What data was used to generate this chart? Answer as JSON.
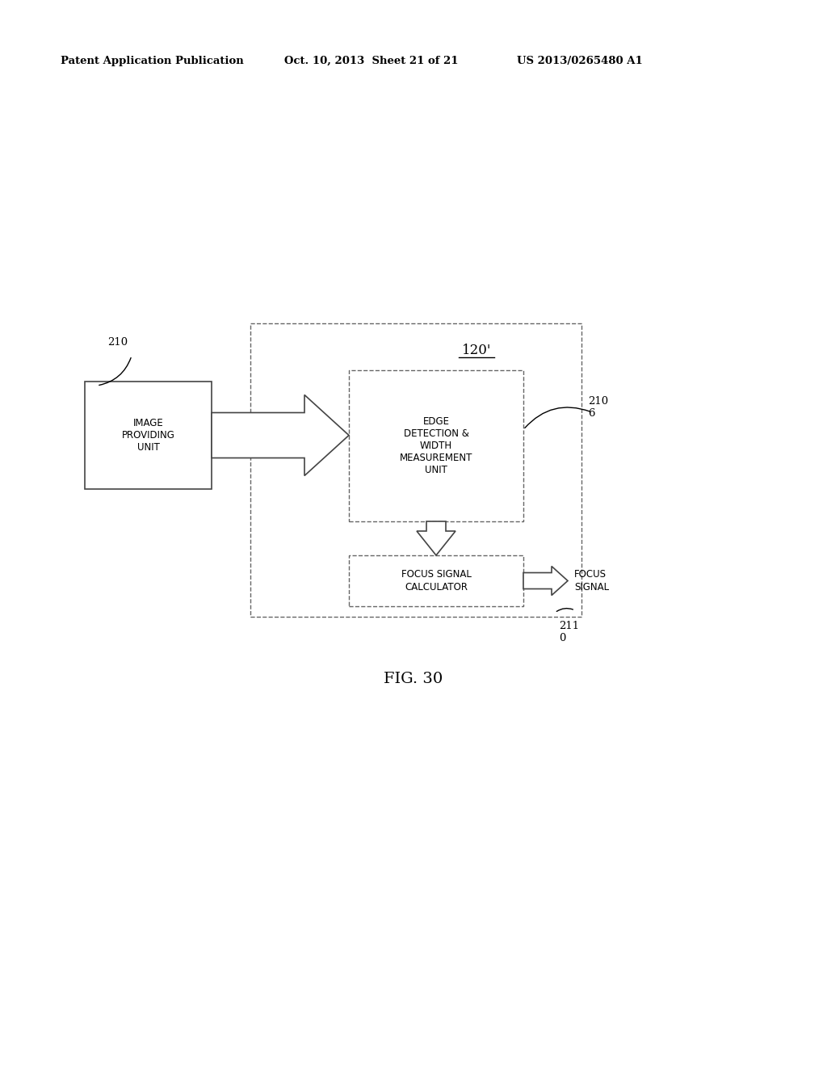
{
  "bg_color": "#ffffff",
  "fig_label": "FIG. 30",
  "label_120": "120'",
  "label_210": "210",
  "label_2106": "2106",
  "label_2110": "2110",
  "box_image_providing": "IMAGE\nPROVIDING\nUNIT",
  "box_edge_detection": "EDGE\nDETECTION &\nWIDTH\nMEASUREMENT\nUNIT",
  "box_focus_signal": "FOCUS SIGNAL\nCALCULATOR",
  "label_focus_signal": "FOCUS\nSIGNAL"
}
